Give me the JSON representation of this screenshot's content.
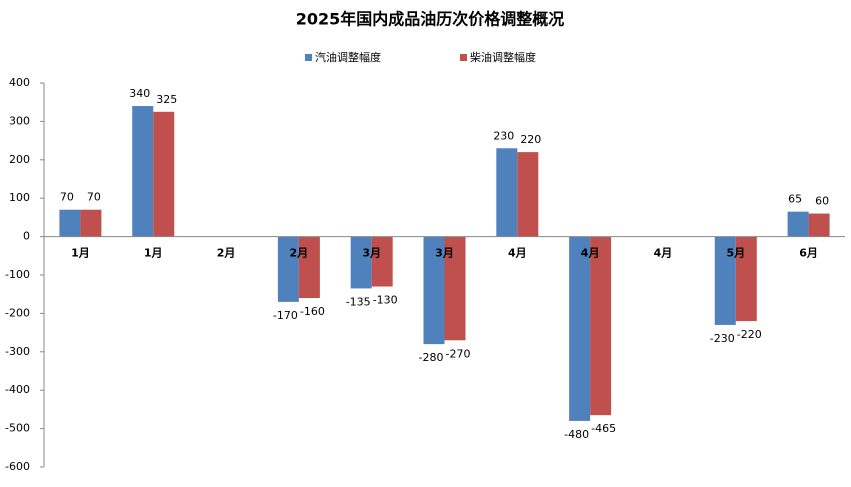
{
  "chart_data": {
    "type": "bar",
    "title": "2025年国内成品油历次价格调整概况",
    "categories": [
      "1月",
      "1月",
      "2月",
      "2月",
      "3月",
      "3月",
      "4月",
      "4月",
      "4月",
      "5月",
      "6月"
    ],
    "series": [
      {
        "name": "汽油调整幅度",
        "color": "#4f81bd",
        "values": [
          70,
          340,
          null,
          -170,
          -135,
          -280,
          230,
          -480,
          null,
          -230,
          65
        ]
      },
      {
        "name": "柴油调整幅度",
        "color": "#c0504d",
        "values": [
          70,
          325,
          null,
          -160,
          -130,
          -270,
          220,
          -465,
          null,
          -220,
          60
        ]
      }
    ],
    "ylim": [
      -600,
      400
    ],
    "yticks": [
      -600,
      -500,
      -400,
      -300,
      -200,
      -100,
      0,
      100,
      200,
      300,
      400
    ],
    "legend": "top"
  }
}
